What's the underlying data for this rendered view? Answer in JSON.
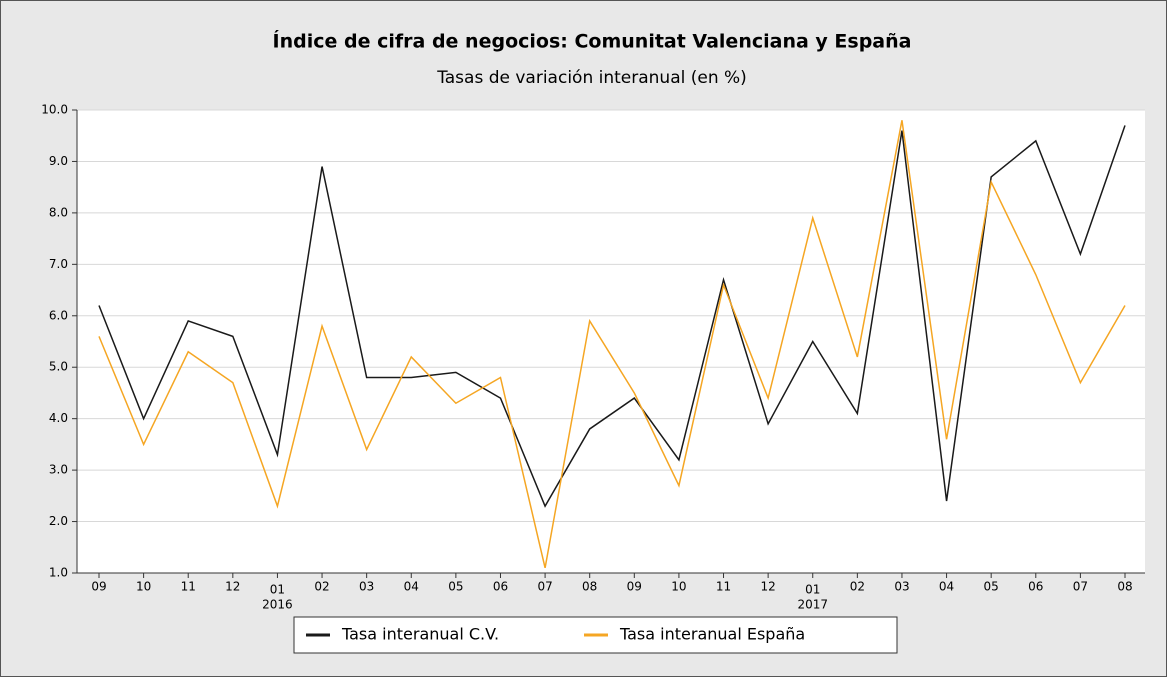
{
  "chart_data": {
    "type": "line",
    "title": "Índice de cifra de negocios: Comunitat Valenciana y España",
    "subtitle": "Tasas de variación interanual (en %)",
    "categories": [
      "09",
      "10",
      "11",
      "12",
      "01",
      "02",
      "03",
      "04",
      "05",
      "06",
      "07",
      "08",
      "09",
      "10",
      "11",
      "12",
      "01",
      "02",
      "03",
      "04",
      "05",
      "06",
      "07",
      "08"
    ],
    "category_years": [
      null,
      null,
      null,
      null,
      "2016",
      null,
      null,
      null,
      null,
      null,
      null,
      null,
      null,
      null,
      null,
      null,
      "2017",
      null,
      null,
      null,
      null,
      null,
      null,
      null
    ],
    "series": [
      {
        "name": "Tasa interanual C.V.",
        "color": "#1a1a1a",
        "values": [
          6.2,
          4.0,
          5.9,
          5.6,
          3.3,
          8.9,
          4.8,
          4.8,
          4.9,
          4.4,
          2.3,
          3.8,
          4.4,
          3.2,
          6.7,
          3.9,
          5.5,
          4.1,
          9.6,
          2.4,
          8.7,
          9.4,
          7.2,
          9.7
        ]
      },
      {
        "name": "Tasa interanual España",
        "color": "#f5a623",
        "values": [
          5.6,
          3.5,
          5.3,
          4.7,
          2.3,
          5.8,
          3.4,
          5.2,
          4.3,
          4.8,
          1.1,
          5.9,
          4.5,
          2.7,
          6.6,
          4.4,
          7.9,
          5.2,
          9.8,
          3.6,
          8.6,
          6.8,
          4.7,
          6.2
        ]
      }
    ],
    "ylim": [
      1,
      10
    ],
    "yticks": [
      {
        "value": 1,
        "label": "1.0"
      },
      {
        "value": 2,
        "label": "2.0"
      },
      {
        "value": 3,
        "label": "3.0"
      },
      {
        "value": 4,
        "label": "4.0"
      },
      {
        "value": 5,
        "label": "5.0"
      },
      {
        "value": 6,
        "label": "6.0"
      },
      {
        "value": 7,
        "label": "7.0"
      },
      {
        "value": 8,
        "label": "8.0"
      },
      {
        "value": 9,
        "label": "9.0"
      },
      {
        "value": 10,
        "label": "10.0"
      }
    ],
    "grid": true
  }
}
